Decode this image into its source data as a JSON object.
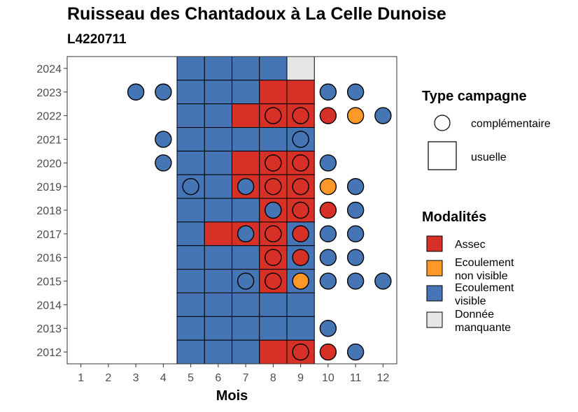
{
  "title": "Ruisseau des Chantadoux à La Celle Dunoise",
  "subtitle": "L4220711",
  "chart_data": {
    "type": "heatmap",
    "xlabel": "Mois",
    "ylabel": "",
    "x_ticks": [
      1,
      2,
      3,
      4,
      5,
      6,
      7,
      8,
      9,
      10,
      11,
      12
    ],
    "y_ticks": [
      2012,
      2013,
      2014,
      2015,
      2016,
      2017,
      2018,
      2019,
      2020,
      2021,
      2022,
      2023,
      2024
    ],
    "xlim": [
      0.5,
      12.5
    ],
    "ylim": [
      2011.5,
      2024.5
    ],
    "grid": false,
    "legend_placement": "right",
    "colors": {
      "Assec": "#d73027",
      "Ecoulement non visible": "#fe9929",
      "Ecoulement visible": "#4575b4",
      "Donnée manquante": "#e6e6e6"
    },
    "legend": {
      "type_title": "Type campagne",
      "type_items": [
        {
          "label": "complémentaire",
          "shape": "circle"
        },
        {
          "label": "usuelle",
          "shape": "square"
        }
      ],
      "modalite_title": "Modalités",
      "modalite_items": [
        {
          "lines": [
            "Assec"
          ],
          "key": "Assec"
        },
        {
          "lines": [
            "Ecoulement",
            "non visible"
          ],
          "key": "Ecoulement non visible"
        },
        {
          "lines": [
            "Ecoulement",
            "visible"
          ],
          "key": "Ecoulement visible"
        },
        {
          "lines": [
            "Donnée",
            "manquante"
          ],
          "key": "Donnée manquante"
        }
      ]
    },
    "usuelle": [
      {
        "year": 2024,
        "values": {
          "5": "Ecoulement visible",
          "6": "Ecoulement visible",
          "7": "Ecoulement visible",
          "8": "Ecoulement visible",
          "9": "Donnée manquante"
        }
      },
      {
        "year": 2023,
        "values": {
          "5": "Ecoulement visible",
          "6": "Ecoulement visible",
          "7": "Ecoulement visible",
          "8": "Assec",
          "9": "Assec"
        }
      },
      {
        "year": 2022,
        "values": {
          "5": "Ecoulement visible",
          "6": "Ecoulement visible",
          "7": "Assec",
          "8": "Assec",
          "9": "Assec"
        }
      },
      {
        "year": 2021,
        "values": {
          "5": "Ecoulement visible",
          "6": "Ecoulement visible",
          "7": "Ecoulement visible",
          "8": "Ecoulement visible",
          "9": "Ecoulement visible"
        }
      },
      {
        "year": 2020,
        "values": {
          "5": "Ecoulement visible",
          "6": "Ecoulement visible",
          "7": "Assec",
          "8": "Assec",
          "9": "Assec"
        }
      },
      {
        "year": 2019,
        "values": {
          "5": "Ecoulement visible",
          "6": "Ecoulement visible",
          "7": "Assec",
          "8": "Assec",
          "9": "Assec"
        }
      },
      {
        "year": 2018,
        "values": {
          "5": "Ecoulement visible",
          "6": "Ecoulement visible",
          "7": "Ecoulement visible",
          "8": "Assec",
          "9": "Assec"
        }
      },
      {
        "year": 2017,
        "values": {
          "5": "Ecoulement visible",
          "6": "Assec",
          "7": "Assec",
          "8": "Assec",
          "9": "Ecoulement visible"
        }
      },
      {
        "year": 2016,
        "values": {
          "5": "Ecoulement visible",
          "6": "Ecoulement visible",
          "7": "Ecoulement visible",
          "8": "Assec",
          "9": "Ecoulement visible"
        }
      },
      {
        "year": 2015,
        "values": {
          "5": "Ecoulement visible",
          "6": "Ecoulement visible",
          "7": "Ecoulement visible",
          "8": "Assec",
          "9": "Ecoulement visible"
        }
      },
      {
        "year": 2014,
        "values": {
          "5": "Ecoulement visible",
          "6": "Ecoulement visible",
          "7": "Ecoulement visible",
          "8": "Ecoulement visible",
          "9": "Ecoulement visible"
        }
      },
      {
        "year": 2013,
        "values": {
          "5": "Ecoulement visible",
          "6": "Ecoulement visible",
          "7": "Ecoulement visible",
          "8": "Ecoulement visible",
          "9": "Ecoulement visible"
        }
      },
      {
        "year": 2012,
        "values": {
          "5": "Ecoulement visible",
          "6": "Ecoulement visible",
          "7": "Ecoulement visible",
          "8": "Assec",
          "9": "Assec"
        }
      }
    ],
    "complementaire": [
      {
        "year": 2023,
        "month": 3,
        "value": "Ecoulement visible"
      },
      {
        "year": 2023,
        "month": 4,
        "value": "Ecoulement visible"
      },
      {
        "year": 2023,
        "month": 10,
        "value": "Ecoulement visible"
      },
      {
        "year": 2023,
        "month": 11,
        "value": "Ecoulement visible"
      },
      {
        "year": 2022,
        "month": 8,
        "value": "Assec"
      },
      {
        "year": 2022,
        "month": 9,
        "value": "Assec"
      },
      {
        "year": 2022,
        "month": 10,
        "value": "Assec"
      },
      {
        "year": 2022,
        "month": 11,
        "value": "Ecoulement non visible"
      },
      {
        "year": 2022,
        "month": 12,
        "value": "Ecoulement visible"
      },
      {
        "year": 2021,
        "month": 4,
        "value": "Ecoulement visible"
      },
      {
        "year": 2021,
        "month": 9,
        "value": "Ecoulement visible"
      },
      {
        "year": 2020,
        "month": 4,
        "value": "Ecoulement visible"
      },
      {
        "year": 2020,
        "month": 8,
        "value": "Assec"
      },
      {
        "year": 2020,
        "month": 9,
        "value": "Assec"
      },
      {
        "year": 2020,
        "month": 10,
        "value": "Ecoulement visible"
      },
      {
        "year": 2019,
        "month": 5,
        "value": "Ecoulement visible"
      },
      {
        "year": 2019,
        "month": 7,
        "value": "Ecoulement visible"
      },
      {
        "year": 2019,
        "month": 8,
        "value": "Assec"
      },
      {
        "year": 2019,
        "month": 9,
        "value": "Assec"
      },
      {
        "year": 2019,
        "month": 10,
        "value": "Ecoulement non visible"
      },
      {
        "year": 2019,
        "month": 11,
        "value": "Ecoulement visible"
      },
      {
        "year": 2018,
        "month": 8,
        "value": "Ecoulement visible"
      },
      {
        "year": 2018,
        "month": 9,
        "value": "Assec"
      },
      {
        "year": 2018,
        "month": 10,
        "value": "Assec"
      },
      {
        "year": 2018,
        "month": 11,
        "value": "Ecoulement visible"
      },
      {
        "year": 2017,
        "month": 7,
        "value": "Ecoulement visible"
      },
      {
        "year": 2017,
        "month": 8,
        "value": "Assec"
      },
      {
        "year": 2017,
        "month": 9,
        "value": "Assec"
      },
      {
        "year": 2017,
        "month": 10,
        "value": "Ecoulement visible"
      },
      {
        "year": 2017,
        "month": 11,
        "value": "Ecoulement visible"
      },
      {
        "year": 2016,
        "month": 8,
        "value": "Assec"
      },
      {
        "year": 2016,
        "month": 9,
        "value": "Assec"
      },
      {
        "year": 2016,
        "month": 10,
        "value": "Ecoulement visible"
      },
      {
        "year": 2016,
        "month": 11,
        "value": "Ecoulement visible"
      },
      {
        "year": 2015,
        "month": 7,
        "value": "Ecoulement visible"
      },
      {
        "year": 2015,
        "month": 8,
        "value": "Assec"
      },
      {
        "year": 2015,
        "month": 9,
        "value": "Ecoulement non visible"
      },
      {
        "year": 2015,
        "month": 10,
        "value": "Ecoulement visible"
      },
      {
        "year": 2015,
        "month": 11,
        "value": "Ecoulement visible"
      },
      {
        "year": 2015,
        "month": 12,
        "value": "Ecoulement visible"
      },
      {
        "year": 2013,
        "month": 10,
        "value": "Ecoulement visible"
      },
      {
        "year": 2012,
        "month": 9,
        "value": "Assec"
      },
      {
        "year": 2012,
        "month": 10,
        "value": "Assec"
      },
      {
        "year": 2012,
        "month": 11,
        "value": "Ecoulement visible"
      }
    ]
  }
}
